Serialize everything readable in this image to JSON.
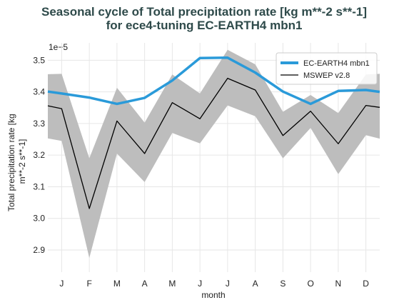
{
  "chart_data": {
    "type": "line",
    "title_lines": [
      "Seasonal cycle of Total precipitation rate [kg m**-2 s**-1]",
      "for ece4-tuning EC-EARTH4 mbn1"
    ],
    "xlabel": "month",
    "ylabel_lines": [
      "Total precipitation rate [kg",
      "m**-2 s**-1]"
    ],
    "y_offset_text": "1e−5",
    "categories": [
      "J",
      "F",
      "M",
      "A",
      "M",
      "J",
      "J",
      "A",
      "S",
      "O",
      "N",
      "D"
    ],
    "ylim": [
      2.83,
      3.555
    ],
    "yticks": [
      2.9,
      3.0,
      3.1,
      3.2,
      3.3,
      3.4,
      3.5
    ],
    "ytick_labels": [
      "2.9",
      "3.0",
      "3.1",
      "3.2",
      "3.3",
      "3.4",
      "3.5"
    ],
    "grid": true,
    "legend_position": "top-right",
    "series": [
      {
        "name": "EC-EARTH4 mbn1",
        "color": "#2a9ad9",
        "values": [
          3.395,
          3.382,
          3.362,
          3.381,
          3.436,
          3.507,
          3.508,
          3.461,
          3.401,
          3.362,
          3.403,
          3.406
        ],
        "edge_values": [
          3.401,
          3.4
        ]
      },
      {
        "name": "MSWEP v2.8",
        "color": "#000000",
        "values": [
          3.347,
          3.031,
          3.308,
          3.205,
          3.366,
          3.315,
          3.443,
          3.406,
          3.262,
          3.339,
          3.236,
          3.357
        ],
        "edge_values": [
          3.356,
          3.351
        ],
        "band_upper": [
          3.457,
          3.19,
          3.413,
          3.303,
          3.455,
          3.395,
          3.533,
          3.487,
          3.337,
          3.39,
          3.333,
          3.455
        ],
        "band_upper_edge": [
          3.456,
          3.457
        ],
        "band_lower": [
          3.245,
          2.875,
          3.205,
          3.115,
          3.27,
          3.237,
          3.357,
          3.323,
          3.19,
          3.286,
          3.14,
          3.263
        ],
        "band_lower_edge": [
          3.253,
          3.252
        ]
      }
    ]
  }
}
